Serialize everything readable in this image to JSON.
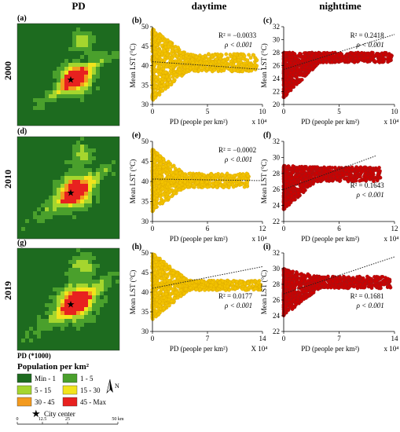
{
  "column_headers": [
    "PD",
    "daytime",
    "nighttime"
  ],
  "row_years": [
    "2000",
    "2010",
    "2019"
  ],
  "map_panel_labels": [
    "(a)",
    "(d)",
    "(g)"
  ],
  "legend": {
    "title": "PD (*1000)",
    "subtitle": "Population per km²",
    "classes": [
      {
        "label": "Min - 1",
        "color": "#1d6b1f"
      },
      {
        "label": "1 - 5",
        "color": "#4aa02c"
      },
      {
        "label": "5 - 15",
        "color": "#a5d62e"
      },
      {
        "label": "15 - 30",
        "color": "#f2e41c"
      },
      {
        "label": "30 - 45",
        "color": "#f39a1e"
      },
      {
        "label": "45 - Max",
        "color": "#e8211f"
      }
    ],
    "city_center_label": "City center",
    "north_label": "N",
    "scalebar_ticks": [
      "0",
      "12.5",
      "25",
      "50 km"
    ]
  },
  "chart_data": [
    {
      "panel": "(b)",
      "type": "scatter",
      "period": "daytime",
      "year": "2000",
      "xlabel": "PD (people per km²)",
      "xmultiplier": "x 10⁴",
      "ylabel": "Mean LST (°C)",
      "xlim": [
        0,
        10
      ],
      "xticks": [
        "0",
        "5",
        "10"
      ],
      "ylim": [
        30,
        50
      ],
      "yticks": [
        "30",
        "35",
        "40",
        "45",
        "50"
      ],
      "point_color": "#f2c200",
      "point_edge": "#d4a000",
      "r2_text": "R² = −0.0033",
      "p_text": "ρ < 0.001",
      "trend": {
        "x": [
          0,
          10
        ],
        "y": [
          41.0,
          39.0
        ]
      },
      "point_cloud": {
        "x_range": [
          0,
          9.5
        ],
        "y_center": 40.5,
        "y_spread_near_zero": [
          31,
          49.5
        ],
        "y_spread_far": [
          38.5,
          43
        ]
      }
    },
    {
      "panel": "(c)",
      "type": "scatter",
      "period": "nighttime",
      "year": "2000",
      "xlabel": "PD (people per km²)",
      "xmultiplier": "x 10⁴",
      "ylabel": "Mean LST (°C)",
      "xlim": [
        0,
        10
      ],
      "xticks": [
        "0",
        "5",
        "10"
      ],
      "ylim": [
        20,
        32
      ],
      "yticks": [
        "20",
        "22",
        "24",
        "26",
        "28",
        "30",
        "32"
      ],
      "point_color": "#cc0000",
      "point_edge": "#8a2222",
      "r2_text": "R² = 0.2418",
      "p_text": "ρ < 0.001",
      "trend": {
        "x": [
          0,
          10
        ],
        "y": [
          25.4,
          30.8
        ]
      },
      "point_cloud": {
        "x_range": [
          0,
          9.8
        ],
        "y_center": 26.8,
        "y_spread_near_zero": [
          21,
          28
        ],
        "y_spread_far": [
          26.5,
          28
        ]
      }
    },
    {
      "panel": "(e)",
      "type": "scatter",
      "period": "daytime",
      "year": "2010",
      "xlabel": "PD (people per km²)",
      "xmultiplier": "x 10⁴",
      "ylabel": "Mean LST (°C)",
      "xlim": [
        0,
        12
      ],
      "xticks": [
        "0",
        "6",
        "12"
      ],
      "ylim": [
        30,
        50
      ],
      "yticks": [
        "30",
        "35",
        "40",
        "45",
        "50"
      ],
      "point_color": "#f2c200",
      "point_edge": "#d4a000",
      "r2_text": "R² = −0.0002",
      "p_text": "ρ < 0.001",
      "trend": {
        "x": [
          0,
          12
        ],
        "y": [
          40.6,
          40.2
        ]
      },
      "point_cloud": {
        "x_range": [
          0,
          10.5
        ],
        "y_center": 40.5,
        "y_spread_near_zero": [
          32.5,
          48
        ],
        "y_spread_far": [
          38.5,
          42
        ]
      }
    },
    {
      "panel": "(f)",
      "type": "scatter",
      "period": "nighttime",
      "year": "2010",
      "xlabel": "PD (people per km²)",
      "xmultiplier": "x 10⁴",
      "ylabel": "Mean LST (°C)",
      "xlim": [
        0,
        12
      ],
      "xticks": [
        "0",
        "6",
        "12"
      ],
      "ylim": [
        22,
        32
      ],
      "yticks": [
        "22",
        "24",
        "26",
        "28",
        "30",
        "32"
      ],
      "point_color": "#cc0000",
      "point_edge": "#8a2222",
      "r2_text": "R² = 0.1643",
      "p_text": "ρ < 0.001",
      "trend": {
        "x": [
          0,
          10
        ],
        "y": [
          26.0,
          30.2
        ]
      },
      "point_cloud": {
        "x_range": [
          0,
          10.5
        ],
        "y_center": 27.3,
        "y_spread_near_zero": [
          23.5,
          29
        ],
        "y_spread_far": [
          27,
          28.8
        ]
      }
    },
    {
      "panel": "(h)",
      "type": "scatter",
      "period": "daytime",
      "year": "2019",
      "xlabel": "PD (people per km²)",
      "xmultiplier": "X 10⁴",
      "ylabel": "Mean LST (°C)",
      "xlim": [
        0,
        14
      ],
      "xticks": [
        "0",
        "7",
        "14"
      ],
      "ylim": [
        30,
        50
      ],
      "yticks": [
        "30",
        "35",
        "40",
        "45",
        "50"
      ],
      "point_color": "#f2c200",
      "point_edge": "#d4a000",
      "r2_text": "R² = 0.0177",
      "p_text": "ρ < 0.001",
      "trend": {
        "x": [
          0,
          14
        ],
        "y": [
          41.0,
          46.5
        ]
      },
      "point_cloud": {
        "x_range": [
          0,
          13.8
        ],
        "y_center": 42,
        "y_spread_near_zero": [
          33,
          50
        ],
        "y_spread_far": [
          40.5,
          43
        ]
      }
    },
    {
      "panel": "(i)",
      "type": "scatter",
      "period": "nighttime",
      "year": "2019",
      "xlabel": "PD (people per km²)",
      "xmultiplier": "x 10⁴",
      "ylabel": "Mean LST (°C)",
      "xlim": [
        0,
        14
      ],
      "xticks": [
        "0",
        "7",
        "14"
      ],
      "ylim": [
        22,
        32
      ],
      "yticks": [
        "22",
        "24",
        "26",
        "28",
        "30",
        "32"
      ],
      "point_color": "#cc0000",
      "point_edge": "#8a2222",
      "r2_text": "R² = 0.1681",
      "p_text": "ρ < 0.001",
      "trend": {
        "x": [
          0,
          14
        ],
        "y": [
          26.8,
          31.5
        ]
      },
      "point_cloud": {
        "x_range": [
          0,
          13.5
        ],
        "y_center": 28.1,
        "y_spread_near_zero": [
          24,
          30
        ],
        "y_spread_far": [
          27.5,
          29
        ]
      }
    }
  ]
}
